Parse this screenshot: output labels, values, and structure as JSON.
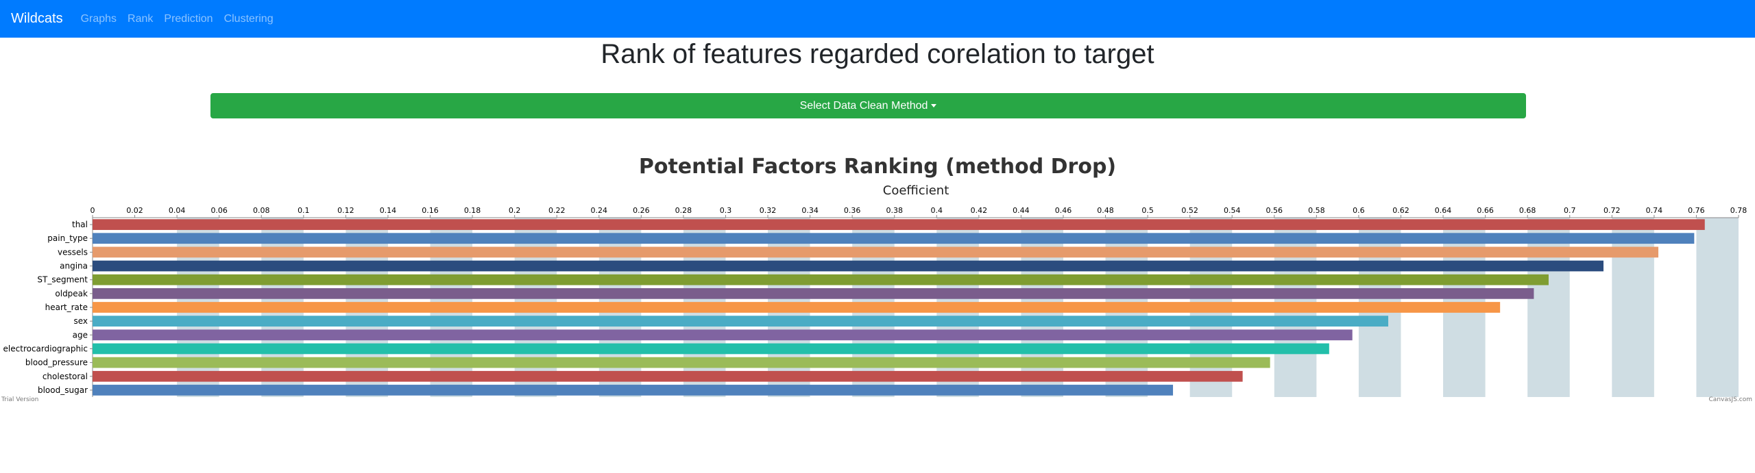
{
  "navbar": {
    "brand": "Wildcats",
    "links": [
      "Graphs",
      "Rank",
      "Prediction",
      "Clustering"
    ]
  },
  "page": {
    "title": "Rank of features regarded corelation to target",
    "dropdown_label": "Select Data Clean Method"
  },
  "colors": {
    "navbar": "#007bff",
    "button": "#28a745",
    "stripe": "#cfdde3"
  },
  "chart_data": {
    "type": "bar",
    "orientation": "horizontal",
    "title": "Potential Factors Ranking (method Drop)",
    "axis_title": "Coefficient",
    "xlim": [
      0,
      0.78
    ],
    "tick_interval": 0.02,
    "categories": [
      "thal",
      "pain_type",
      "vessels",
      "angina",
      "ST_segment",
      "oldpeak",
      "heart_rate",
      "sex",
      "age",
      "electrocardiographic",
      "blood_pressure",
      "cholestoral",
      "blood_sugar"
    ],
    "values": [
      0.764,
      0.759,
      0.742,
      0.716,
      0.69,
      0.683,
      0.667,
      0.614,
      0.597,
      0.586,
      0.558,
      0.545,
      0.512
    ],
    "colors": [
      "#c0504e",
      "#4f81bc",
      "#e69a6b",
      "#2b4c7e",
      "#7f9d32",
      "#7a5d8c",
      "#f79647",
      "#4aacc5",
      "#8064a1",
      "#23bfaa",
      "#9bbb58",
      "#c0504e",
      "#4f81bc"
    ],
    "watermark_left": "Trial Version",
    "watermark_right": "CanvasJS.com"
  }
}
